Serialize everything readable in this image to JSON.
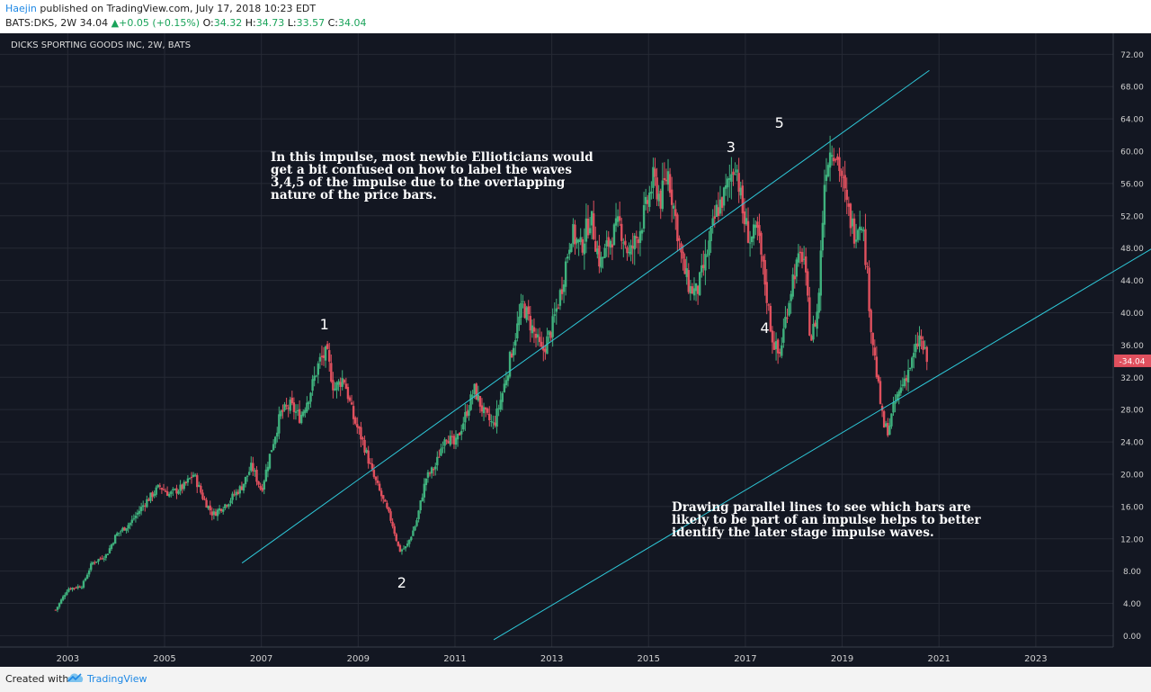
{
  "header": {
    "author": "Haejin",
    "published": "published on TradingView.com, July 17, 2018 10:23 EDT",
    "symbol": "BATS:DKS, 2W",
    "last": "34.04",
    "change_arrow": "▲",
    "change": "+0.05 (+0.15%)",
    "o_label": "O:",
    "o_value": "34.32",
    "h_label": "H:",
    "h_value": "34.73",
    "l_label": "L:",
    "l_value": "33.57",
    "c_label": "C:",
    "c_value": "34.04"
  },
  "footer": {
    "created_with": "Created with",
    "brand": "TradingView",
    "logo_icon": "tradingview-cloud-icon"
  },
  "colors": {
    "background": "#131722",
    "grid": "#262a35",
    "up": "#3fb17d",
    "down": "#e0505e",
    "channel": "#2ec8d8",
    "axis_text": "#d0d0d0",
    "price_tag": "#e0505e"
  },
  "chart_data": {
    "type": "candlestick",
    "title": "DICKS SPORTING GOODS INC, 2W, BATS",
    "x_ticks": [
      "2003",
      "2005",
      "2007",
      "2009",
      "2011",
      "2013",
      "2015",
      "2017",
      "2019",
      "2021",
      "2023"
    ],
    "xlim": [
      2001.6,
      2024.6
    ],
    "y_ticks": [
      "72.00",
      "68.00",
      "64.00",
      "60.00",
      "56.00",
      "52.00",
      "48.00",
      "44.00",
      "40.00",
      "36.00",
      "32.00",
      "28.00",
      "24.00",
      "20.00",
      "16.00",
      "12.00",
      "8.00",
      "4.00",
      "0.00"
    ],
    "ylim": [
      -1.4,
      74.6
    ],
    "last_price": "34.04",
    "price_path": [
      [
        2002.75,
        3.2
      ],
      [
        2003.0,
        5.8
      ],
      [
        2003.3,
        6.2
      ],
      [
        2003.5,
        9.0
      ],
      [
        2003.8,
        10.0
      ],
      [
        2004.0,
        12.5
      ],
      [
        2004.3,
        14.0
      ],
      [
        2004.6,
        16.5
      ],
      [
        2004.9,
        18.5
      ],
      [
        2005.1,
        17.5
      ],
      [
        2005.4,
        18.5
      ],
      [
        2005.6,
        20.0
      ],
      [
        2005.8,
        17.0
      ],
      [
        2006.0,
        15.0
      ],
      [
        2006.3,
        16.5
      ],
      [
        2006.6,
        18.5
      ],
      [
        2006.8,
        21.0
      ],
      [
        2007.0,
        18.0
      ],
      [
        2007.2,
        23.0
      ],
      [
        2007.4,
        27.5
      ],
      [
        2007.6,
        28.5
      ],
      [
        2007.8,
        27.0
      ],
      [
        2008.0,
        30.0
      ],
      [
        2008.2,
        34.0
      ],
      [
        2008.35,
        35.0
      ],
      [
        2008.5,
        30.5
      ],
      [
        2008.7,
        32.0
      ],
      [
        2008.9,
        27.0
      ],
      [
        2009.1,
        24.0
      ],
      [
        2009.3,
        20.0
      ],
      [
        2009.5,
        17.0
      ],
      [
        2009.7,
        14.0
      ],
      [
        2009.85,
        10.5
      ],
      [
        2010.0,
        11.0
      ],
      [
        2010.2,
        14.0
      ],
      [
        2010.4,
        19.5
      ],
      [
        2010.6,
        21.0
      ],
      [
        2010.8,
        25.0
      ],
      [
        2011.0,
        23.5
      ],
      [
        2011.2,
        27.0
      ],
      [
        2011.4,
        30.5
      ],
      [
        2011.6,
        27.5
      ],
      [
        2011.8,
        26.0
      ],
      [
        2012.0,
        30.5
      ],
      [
        2012.2,
        36.0
      ],
      [
        2012.4,
        41.0
      ],
      [
        2012.6,
        38.0
      ],
      [
        2012.8,
        35.0
      ],
      [
        2013.0,
        38.0
      ],
      [
        2013.2,
        43.0
      ],
      [
        2013.4,
        50.0
      ],
      [
        2013.6,
        48.0
      ],
      [
        2013.8,
        52.0
      ],
      [
        2014.0,
        46.0
      ],
      [
        2014.2,
        49.0
      ],
      [
        2014.4,
        51.0
      ],
      [
        2014.6,
        47.0
      ],
      [
        2014.8,
        50.0
      ],
      [
        2014.95,
        53.0
      ],
      [
        2015.1,
        56.5
      ],
      [
        2015.25,
        54.0
      ],
      [
        2015.4,
        57.5
      ],
      [
        2015.55,
        52.0
      ],
      [
        2015.7,
        46.0
      ],
      [
        2015.85,
        43.0
      ],
      [
        2016.0,
        42.5
      ],
      [
        2016.2,
        47.0
      ],
      [
        2016.4,
        52.5
      ],
      [
        2016.6,
        55.0
      ],
      [
        2016.8,
        59.0
      ],
      [
        2016.95,
        52.0
      ],
      [
        2017.1,
        49.0
      ],
      [
        2017.25,
        50.0
      ],
      [
        2017.4,
        44.0
      ],
      [
        2017.55,
        37.0
      ],
      [
        2017.7,
        34.5
      ],
      [
        2017.85,
        40.0
      ],
      [
        2018.0,
        45.0
      ],
      [
        2018.2,
        47.5
      ],
      [
        2018.35,
        36.5
      ],
      [
        2018.5,
        40.5
      ],
      [
        2018.65,
        58.0
      ],
      [
        2018.8,
        61.0
      ],
      [
        2018.95,
        58.0
      ],
      [
        2019.1,
        53.0
      ],
      [
        2019.25,
        50.0
      ],
      [
        2019.4,
        52.0
      ],
      [
        2019.5,
        46.0
      ],
      [
        2019.6,
        38.0
      ],
      [
        2019.7,
        33.0
      ],
      [
        2019.85,
        26.0
      ],
      [
        2019.95,
        25.5
      ],
      [
        2020.1,
        29.0
      ],
      [
        2020.3,
        32.0
      ],
      [
        2020.45,
        34.0
      ],
      [
        2020.6,
        37.0
      ],
      [
        2020.75,
        34.04
      ]
    ],
    "channel_upper": [
      [
        2006.6,
        9.0
      ],
      [
        2020.8,
        70.0
      ]
    ],
    "channel_lower": [
      [
        2011.8,
        -0.5
      ],
      [
        2026.4,
        51.5
      ]
    ],
    "wave_labels": [
      {
        "label": "1",
        "x": 2008.3,
        "y": 38.5
      },
      {
        "label": "2",
        "x": 2009.9,
        "y": 6.5
      },
      {
        "label": "3",
        "x": 2016.7,
        "y": 60.5
      },
      {
        "label": "4",
        "x": 2017.4,
        "y": 38.0
      },
      {
        "label": "5",
        "x": 2017.7,
        "y": 63.5
      }
    ],
    "annotations": [
      [
        "In this impulse, most newbie Ellioticians would",
        "get a bit confused on how to label the waves",
        "3,4,5 of the impulse due to the overlapping",
        "nature of the price bars."
      ],
      [
        "Drawing parallel lines to see which bars are",
        "likely to be part of an impulse helps to better",
        "identify the later stage impulse waves."
      ]
    ]
  }
}
